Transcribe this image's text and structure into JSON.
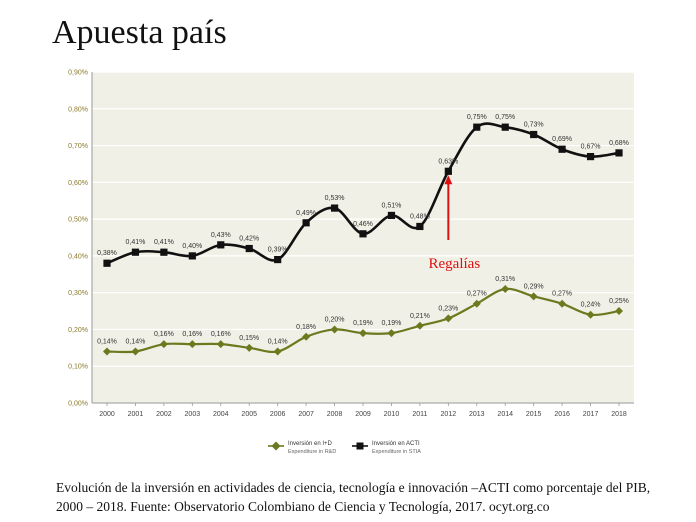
{
  "title": "Apuesta país",
  "caption": "Evolución de la inversión en actividades de ciencia, tecnología e innovación –ACTI como porcentaje del PIB, 2000 – 2018. Fuente: Observatorio Colombiano de Ciencia y Tecnología, 2017. ocyt.org.co",
  "chart_data": {
    "type": "line",
    "x": [
      "2000",
      "2001",
      "2002",
      "2003",
      "2004",
      "2005",
      "2006",
      "2007",
      "2008",
      "2009",
      "2010",
      "2011",
      "2012",
      "2013",
      "2014",
      "2015",
      "2016",
      "2017",
      "2018"
    ],
    "ylim": [
      0,
      0.9
    ],
    "yticks": [
      "0,00%",
      "0,10%",
      "0,20%",
      "0,30%",
      "0,40%",
      "0,50%",
      "0,60%",
      "0,70%",
      "0,80%",
      "0,90%"
    ],
    "grid": true,
    "legend_position": "bottom-center",
    "series": [
      {
        "name": "Inversión en I+D",
        "name_en": "Expenditure in R&D",
        "color": "#6b7a1f",
        "marker": "diamond",
        "values": [
          0.14,
          0.14,
          0.16,
          0.16,
          0.16,
          0.15,
          0.14,
          0.18,
          0.2,
          0.19,
          0.19,
          0.21,
          0.23,
          0.27,
          0.31,
          0.29,
          0.27,
          0.24,
          0.25
        ],
        "labels": [
          "0,14%",
          "0,14%",
          "0,16%",
          "0,16%",
          "0,16%",
          "0,15%",
          "0,14%",
          "0,18%",
          "0,20%",
          "0,19%",
          "0,19%",
          "0,21%",
          "0,23%",
          "0,27%",
          "0,31%",
          "0,29%",
          "0,27%",
          "0,24%",
          "0,25%"
        ]
      },
      {
        "name": "Inversión en ACTI",
        "name_en": "Expenditure in STIA",
        "color": "#111111",
        "marker": "square",
        "values": [
          0.38,
          0.41,
          0.41,
          0.4,
          0.43,
          0.42,
          0.39,
          0.49,
          0.53,
          0.46,
          0.51,
          0.48,
          0.63,
          0.75,
          0.75,
          0.73,
          0.69,
          0.67,
          0.68
        ],
        "labels": [
          "0,38%",
          "0,41%",
          "0,41%",
          "0,40%",
          "0,43%",
          "0,42%",
          "0,39%",
          "0,49%",
          "0,53%",
          "0,46%",
          "0,51%",
          "0,48%",
          "0,63%",
          "0,75%",
          "0,75%",
          "0,73%",
          "0,69%",
          "0,67%",
          "0,68%"
        ]
      }
    ],
    "annotation": {
      "text": "Regalías",
      "x": "2012",
      "y": 0.63,
      "color": "#dd1111"
    }
  }
}
